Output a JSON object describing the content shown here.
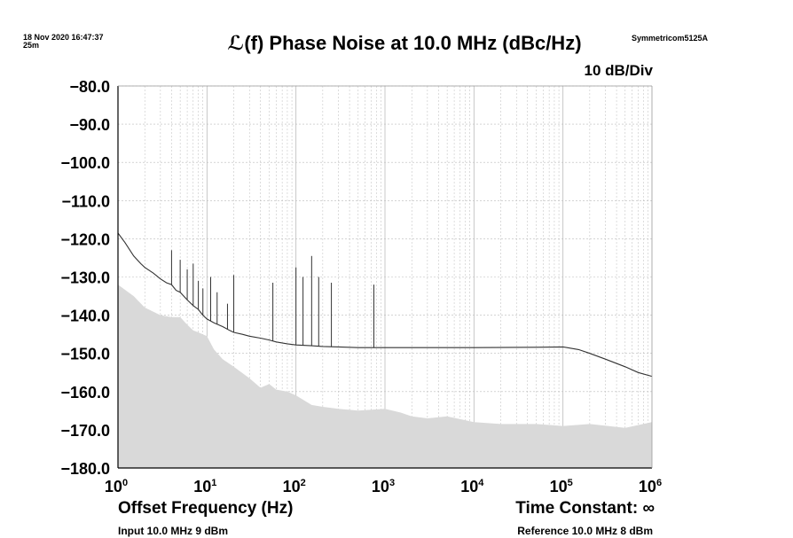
{
  "header": {
    "timestamp_line1": "18 Nov 2020 16:47:37",
    "timestamp_line2": "25m",
    "instrument": "Symmetricom5125A",
    "scale": "10 dB/Div"
  },
  "footer": {
    "time_constant": "Time Constant: ∞",
    "input": "Input 10.0 MHz 9 dBm",
    "reference": "Reference 10.0 MHz 8 dBm"
  },
  "colors": {
    "trace": "#333333",
    "noise_floor_fill": "#d9d9d9",
    "grid": "#bbbbbb",
    "axis": "#000000"
  },
  "chart_data": {
    "type": "line",
    "title": "ℒ(f) Phase Noise at 10.0 MHz (dBc/Hz)",
    "xlabel": "Offset Frequency (Hz)",
    "ylabel": "",
    "x_scale": "log",
    "xlim": [
      1,
      1000000
    ],
    "ylim": [
      -180,
      -80
    ],
    "grid": true,
    "y_ticks": [
      "−80.0",
      "−90.0",
      "−100.0",
      "−110.0",
      "−120.0",
      "−130.0",
      "−140.0",
      "−150.0",
      "−160.0",
      "−170.0",
      "−180.0"
    ],
    "x_ticks": [
      {
        "base": "10",
        "exp": "0"
      },
      {
        "base": "10",
        "exp": "1"
      },
      {
        "base": "10",
        "exp": "2"
      },
      {
        "base": "10",
        "exp": "3"
      },
      {
        "base": "10",
        "exp": "4"
      },
      {
        "base": "10",
        "exp": "5"
      },
      {
        "base": "10",
        "exp": "6"
      }
    ],
    "series": [
      {
        "kind": "line",
        "points": [
          [
            1,
            -118.5
          ],
          [
            1.2,
            -121
          ],
          [
            1.5,
            -124.5
          ],
          [
            1.8,
            -126.5
          ],
          [
            2,
            -127.5
          ],
          [
            2.5,
            -129
          ],
          [
            3,
            -130.5
          ],
          [
            3.5,
            -131.5
          ],
          [
            4,
            -132
          ],
          [
            4.5,
            -133.5
          ],
          [
            5,
            -134
          ],
          [
            6,
            -136
          ],
          [
            7,
            -137.5
          ],
          [
            8,
            -138.5
          ],
          [
            9,
            -140
          ],
          [
            10,
            -141
          ],
          [
            12,
            -142
          ],
          [
            15,
            -143
          ],
          [
            18,
            -144
          ],
          [
            20,
            -144.5
          ],
          [
            25,
            -145
          ],
          [
            30,
            -145.5
          ],
          [
            40,
            -146
          ],
          [
            50,
            -146.5
          ],
          [
            60,
            -147
          ],
          [
            80,
            -147.5
          ],
          [
            100,
            -147.8
          ],
          [
            150,
            -148
          ],
          [
            200,
            -148.2
          ],
          [
            300,
            -148.3
          ],
          [
            500,
            -148.5
          ],
          [
            1000,
            -148.5
          ],
          [
            3000,
            -148.5
          ],
          [
            10000,
            -148.5
          ],
          [
            50000,
            -148.4
          ],
          [
            100000,
            -148.3
          ],
          [
            150000,
            -149
          ],
          [
            200000,
            -150
          ],
          [
            300000,
            -151.5
          ],
          [
            500000,
            -153.5
          ],
          [
            700000,
            -155
          ],
          [
            1000000,
            -156
          ]
        ],
        "spurs": [
          [
            4,
            -123
          ],
          [
            5,
            -125.5
          ],
          [
            6,
            -128
          ],
          [
            7,
            -126.5
          ],
          [
            8,
            -131
          ],
          [
            9,
            -133
          ],
          [
            11,
            -130
          ],
          [
            13,
            -134
          ],
          [
            17,
            -137
          ],
          [
            20,
            -129.5
          ],
          [
            55,
            -131.5
          ],
          [
            100,
            -127.5
          ],
          [
            120,
            -130
          ],
          [
            150,
            -124.5
          ],
          [
            180,
            -130
          ],
          [
            250,
            -131.5
          ],
          [
            750,
            -132
          ]
        ]
      },
      {
        "kind": "area",
        "points": [
          [
            1,
            -132
          ],
          [
            1.5,
            -135
          ],
          [
            2,
            -138
          ],
          [
            3,
            -140
          ],
          [
            4,
            -140.5
          ],
          [
            5,
            -140.5
          ],
          [
            6,
            -142.5
          ],
          [
            7,
            -144
          ],
          [
            8,
            -144.5
          ],
          [
            10,
            -145.5
          ],
          [
            12,
            -149
          ],
          [
            15,
            -151.5
          ],
          [
            20,
            -153.5
          ],
          [
            30,
            -156.5
          ],
          [
            40,
            -159
          ],
          [
            50,
            -158
          ],
          [
            60,
            -159.5
          ],
          [
            80,
            -160
          ],
          [
            100,
            -161
          ],
          [
            150,
            -163.5
          ],
          [
            200,
            -164
          ],
          [
            300,
            -164.5
          ],
          [
            500,
            -165
          ],
          [
            1000,
            -164.5
          ],
          [
            1500,
            -165.5
          ],
          [
            2000,
            -166.5
          ],
          [
            3000,
            -167
          ],
          [
            5000,
            -166.5
          ],
          [
            8000,
            -167.5
          ],
          [
            10000,
            -168
          ],
          [
            20000,
            -168.5
          ],
          [
            50000,
            -168.5
          ],
          [
            100000,
            -169
          ],
          [
            200000,
            -168.5
          ],
          [
            500000,
            -169.5
          ],
          [
            1000000,
            -168
          ]
        ]
      }
    ]
  }
}
